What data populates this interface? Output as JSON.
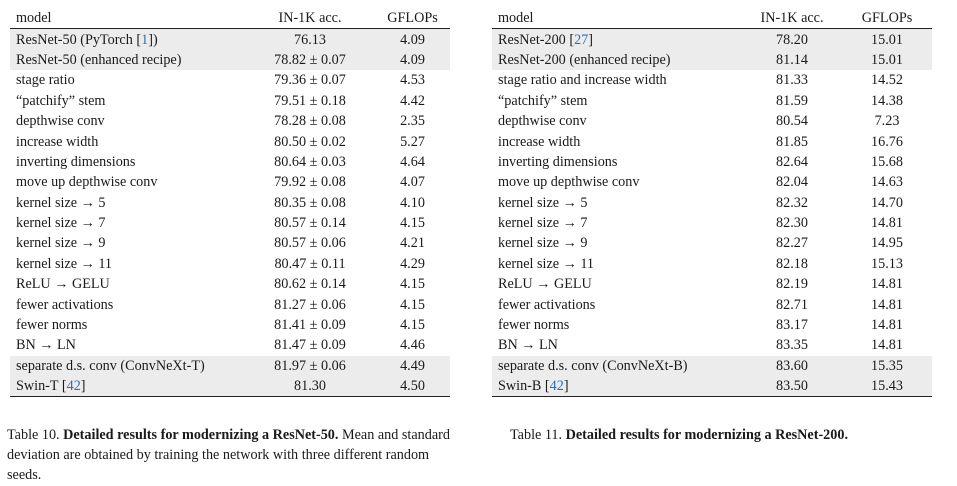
{
  "table10": {
    "headers": [
      "model",
      "IN-1K acc.",
      "GFLOPs"
    ],
    "rows": [
      {
        "model": "ResNet-50 (PyTorch ",
        "ref": "1",
        "after": ")",
        "acc": "76.13",
        "gflops": "4.09",
        "hl": true
      },
      {
        "model": "ResNet-50 (enhanced recipe)",
        "acc": "78.82 ± 0.07",
        "gflops": "4.09",
        "hl": true
      },
      {
        "model": "stage ratio",
        "acc": "79.36 ± 0.07",
        "gflops": "4.53"
      },
      {
        "model": "“patchify” stem",
        "acc": "79.51 ± 0.18",
        "gflops": "4.42"
      },
      {
        "model": "depthwise conv",
        "acc": "78.28 ± 0.08",
        "gflops": "2.35"
      },
      {
        "model": "increase width",
        "acc": "80.50 ± 0.02",
        "gflops": "5.27"
      },
      {
        "model": "inverting dimensions",
        "acc": "80.64 ± 0.03",
        "gflops": "4.64"
      },
      {
        "model": "move up depthwise conv",
        "acc": "79.92 ± 0.08",
        "gflops": "4.07"
      },
      {
        "model": "kernel size → 5",
        "acc": "80.35 ± 0.08",
        "gflops": "4.10"
      },
      {
        "model": "kernel size → 7",
        "acc": "80.57 ± 0.14",
        "gflops": "4.15"
      },
      {
        "model": "kernel size → 9",
        "acc": "80.57 ± 0.06",
        "gflops": "4.21"
      },
      {
        "model": "kernel size → 11",
        "acc": "80.47 ± 0.11",
        "gflops": "4.29"
      },
      {
        "model": "ReLU → GELU",
        "acc": "80.62 ± 0.14",
        "gflops": "4.15"
      },
      {
        "model": "fewer activations",
        "acc": "81.27 ± 0.06",
        "gflops": "4.15"
      },
      {
        "model": "fewer norms",
        "acc": "81.41 ± 0.09",
        "gflops": "4.15"
      },
      {
        "model": "BN → LN",
        "acc": "81.47 ± 0.09",
        "gflops": "4.46"
      },
      {
        "model": "separate d.s. conv (ConvNeXt-T)",
        "acc": "81.97 ± 0.06",
        "gflops": "4.49",
        "hl": true
      },
      {
        "model": "Swin-T ",
        "ref": "42",
        "after": "",
        "acc": "81.30",
        "gflops": "4.50",
        "hl": true
      }
    ],
    "caption": {
      "prefix": "Table 10. ",
      "bold": "Detailed results for modernizing a ResNet-50.",
      "rest": " Mean and standard deviation are obtained by training the network with three different random seeds."
    }
  },
  "table11": {
    "headers": [
      "model",
      "IN-1K acc.",
      "GFLOPs"
    ],
    "rows": [
      {
        "model": "ResNet-200 ",
        "ref": "27",
        "after": "",
        "acc": "78.20",
        "gflops": "15.01",
        "hl": true
      },
      {
        "model": "ResNet-200 (enhanced recipe)",
        "acc": "81.14",
        "gflops": "15.01",
        "hl": true
      },
      {
        "model": "stage ratio and increase width",
        "acc": "81.33",
        "gflops": "14.52"
      },
      {
        "model": "“patchify” stem",
        "acc": "81.59",
        "gflops": "14.38"
      },
      {
        "model": "depthwise conv",
        "acc": "80.54",
        "gflops": "7.23"
      },
      {
        "model": "increase width",
        "acc": "81.85",
        "gflops": "16.76"
      },
      {
        "model": "inverting dimensions",
        "acc": "82.64",
        "gflops": "15.68"
      },
      {
        "model": "move up depthwise conv",
        "acc": "82.04",
        "gflops": "14.63"
      },
      {
        "model": "kernel size → 5",
        "acc": "82.32",
        "gflops": "14.70"
      },
      {
        "model": "kernel size → 7",
        "acc": "82.30",
        "gflops": "14.81"
      },
      {
        "model": "kernel size → 9",
        "acc": "82.27",
        "gflops": "14.95"
      },
      {
        "model": "kernel size → 11",
        "acc": "82.18",
        "gflops": "15.13"
      },
      {
        "model": "ReLU → GELU",
        "acc": "82.19",
        "gflops": "14.81"
      },
      {
        "model": "fewer activations",
        "acc": "82.71",
        "gflops": "14.81"
      },
      {
        "model": "fewer norms",
        "acc": "83.17",
        "gflops": "14.81"
      },
      {
        "model": "BN → LN",
        "acc": "83.35",
        "gflops": "14.81"
      },
      {
        "model": "separate d.s. conv (ConvNeXt-B)",
        "acc": "83.60",
        "gflops": "15.35",
        "hl": true
      },
      {
        "model": "Swin-B ",
        "ref": "42",
        "after": "",
        "acc": "83.50",
        "gflops": "15.43",
        "hl": true
      }
    ],
    "caption": {
      "prefix": "Table 11. ",
      "bold": "Detailed results for modernizing a ResNet-200.",
      "rest": ""
    }
  },
  "colors": {
    "highlight_row": "#ececec",
    "citation_link": "#2a6fc0",
    "text": "#1a1a1a"
  }
}
